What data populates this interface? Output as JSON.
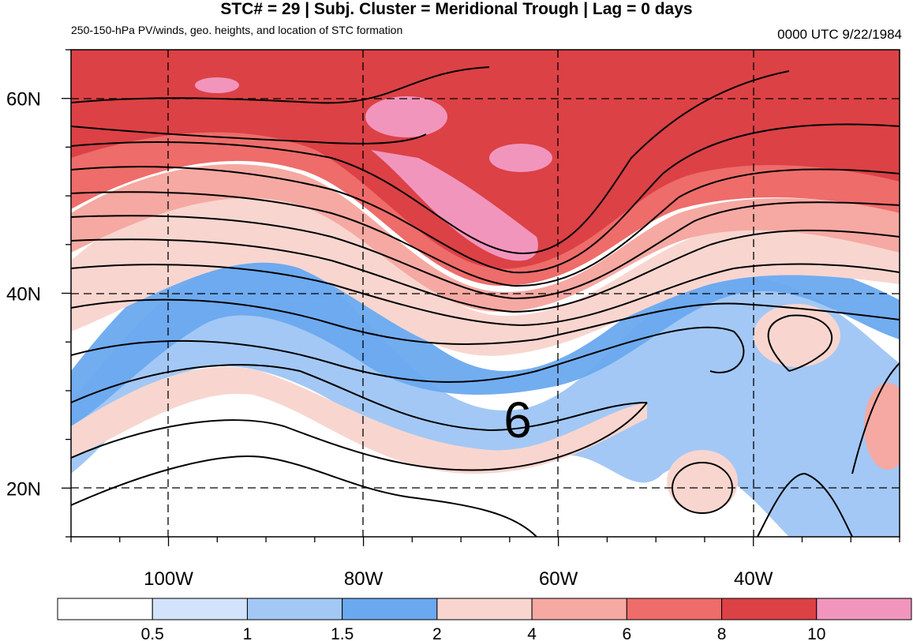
{
  "header": {
    "title": "STC# = 29 | Subj. Cluster = Meridional Trough | Lag = 0 days",
    "subtitle": "250-150-hPa PV/winds, geo. heights, and location of STC formation",
    "datetime": "0000 UTC  9/22/1984"
  },
  "map": {
    "lat_labels": [
      {
        "label": "60N",
        "lat": 60
      },
      {
        "label": "40N",
        "lat": 40
      },
      {
        "label": "20N",
        "lat": 20
      }
    ],
    "lon_labels": [
      {
        "label": "100W",
        "lon": -100
      },
      {
        "label": "80W",
        "lon": -80
      },
      {
        "label": "60W",
        "lon": -60
      },
      {
        "label": "40W",
        "lon": -40
      }
    ],
    "extent": {
      "lon_min": -110,
      "lon_max": -25,
      "lat_min": 15,
      "lat_max": 65
    },
    "storm_symbol": {
      "glyph": "6",
      "lon": -64,
      "lat": 27
    }
  },
  "colorbar": {
    "labels": [
      "0.5",
      "1",
      "1.5",
      "2",
      "4",
      "6",
      "8",
      "10"
    ],
    "colors": [
      "#ffffff",
      "#d2e3fb",
      "#a3c8f5",
      "#6aa9ef",
      "#f8d6cf",
      "#f5a9a2",
      "#ee6c6a",
      "#dc4145",
      "#f295bd"
    ]
  },
  "colors": {
    "pv_high": "#dc4145",
    "pv_mid": "#ee6c6a",
    "pv_low": "#f8d6cf",
    "pv_blue": "#6aa9ef",
    "pv_lightblue": "#a3c8f5",
    "pv_pink": "#f295bd"
  }
}
